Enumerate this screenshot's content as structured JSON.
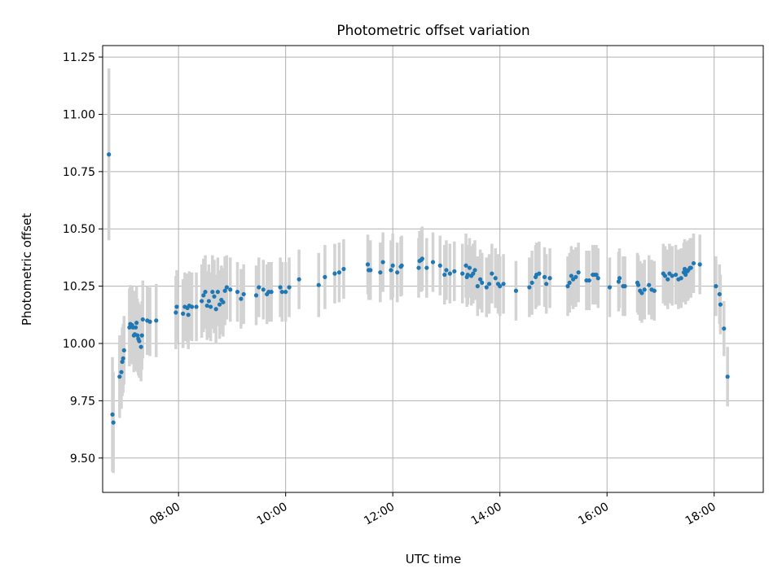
{
  "chart_data": {
    "type": "scatter",
    "title": "Photometric offset variation",
    "xlabel": "UTC time",
    "ylabel": "Photometric offset",
    "x_is_time": true,
    "xlim": [
      "06:35",
      "18:55"
    ],
    "ylim": [
      9.35,
      11.3
    ],
    "xticks": [
      "08:00",
      "10:00",
      "12:00",
      "14:00",
      "16:00",
      "18:00"
    ],
    "yticks": [
      "9.50",
      "9.75",
      "10.00",
      "10.25",
      "10.50",
      "10.75",
      "11.00",
      "11.25"
    ],
    "grid": true,
    "marker_color": "#1f77b4",
    "errorbar_color": "#d3d3d3",
    "series": [
      {
        "points": [
          [
            "06:42",
            10.825,
            0.375
          ],
          [
            "06:46",
            9.69,
            0.25
          ],
          [
            "06:47",
            9.655,
            0.22
          ],
          [
            "06:54",
            9.855,
            0.18
          ],
          [
            "06:56",
            9.875,
            0.16
          ],
          [
            "06:57",
            9.92,
            0.15
          ],
          [
            "06:58",
            9.935,
            0.15
          ],
          [
            "06:59",
            9.97,
            0.15
          ],
          [
            "07:05",
            10.07,
            0.17
          ],
          [
            "07:06",
            10.085,
            0.17
          ],
          [
            "07:08",
            10.08,
            0.17
          ],
          [
            "07:09",
            10.07,
            0.16
          ],
          [
            "07:10",
            10.035,
            0.16
          ],
          [
            "07:11",
            10.04,
            0.16
          ],
          [
            "07:12",
            10.07,
            0.16
          ],
          [
            "07:13",
            10.09,
            0.16
          ],
          [
            "07:14",
            10.035,
            0.16
          ],
          [
            "07:15",
            10.02,
            0.16
          ],
          [
            "07:16",
            10.01,
            0.16
          ],
          [
            "07:18",
            9.985,
            0.15
          ],
          [
            "07:19",
            10.035,
            0.15
          ],
          [
            "07:20",
            10.105,
            0.17
          ],
          [
            "07:25",
            10.1,
            0.15
          ],
          [
            "07:28",
            10.095,
            0.15
          ],
          [
            "07:35",
            10.1,
            0.16
          ],
          [
            "07:57",
            10.135,
            0.16
          ],
          [
            "07:58",
            10.16,
            0.16
          ],
          [
            "08:05",
            10.13,
            0.15
          ],
          [
            "08:07",
            10.16,
            0.15
          ],
          [
            "08:10",
            10.155,
            0.15
          ],
          [
            "08:11",
            10.125,
            0.15
          ],
          [
            "08:12",
            10.165,
            0.15
          ],
          [
            "08:15",
            10.16,
            0.15
          ],
          [
            "08:20",
            10.16,
            0.15
          ],
          [
            "08:26",
            10.185,
            0.16
          ],
          [
            "08:28",
            10.21,
            0.16
          ],
          [
            "08:30",
            10.225,
            0.16
          ],
          [
            "08:32",
            10.165,
            0.15
          ],
          [
            "08:34",
            10.185,
            0.16
          ],
          [
            "08:36",
            10.16,
            0.15
          ],
          [
            "08:38",
            10.225,
            0.16
          ],
          [
            "08:40",
            10.205,
            0.16
          ],
          [
            "08:42",
            10.15,
            0.15
          ],
          [
            "08:44",
            10.225,
            0.15
          ],
          [
            "08:46",
            10.17,
            0.15
          ],
          [
            "08:48",
            10.19,
            0.15
          ],
          [
            "08:50",
            10.18,
            0.15
          ],
          [
            "08:52",
            10.23,
            0.15
          ],
          [
            "08:54",
            10.245,
            0.14
          ],
          [
            "08:58",
            10.235,
            0.14
          ],
          [
            "09:06",
            10.225,
            0.13
          ],
          [
            "09:10",
            10.195,
            0.13
          ],
          [
            "09:13",
            10.215,
            0.13
          ],
          [
            "09:27",
            10.21,
            0.13
          ],
          [
            "09:30",
            10.245,
            0.13
          ],
          [
            "09:35",
            10.235,
            0.13
          ],
          [
            "09:39",
            10.215,
            0.13
          ],
          [
            "09:41",
            10.225,
            0.13
          ],
          [
            "09:44",
            10.225,
            0.13
          ],
          [
            "09:54",
            10.245,
            0.13
          ],
          [
            "09:56",
            10.225,
            0.13
          ],
          [
            "10:00",
            10.225,
            0.13
          ],
          [
            "10:04",
            10.245,
            0.13
          ],
          [
            "10:15",
            10.28,
            0.13
          ],
          [
            "10:37",
            10.255,
            0.14
          ],
          [
            "10:44",
            10.29,
            0.14
          ],
          [
            "10:55",
            10.305,
            0.13
          ],
          [
            "11:00",
            10.31,
            0.13
          ],
          [
            "11:05",
            10.325,
            0.13
          ],
          [
            "11:32",
            10.345,
            0.13
          ],
          [
            "11:33",
            10.32,
            0.13
          ],
          [
            "11:35",
            10.32,
            0.13
          ],
          [
            "11:46",
            10.31,
            0.13
          ],
          [
            "11:49",
            10.355,
            0.13
          ],
          [
            "11:58",
            10.32,
            0.13
          ],
          [
            "12:00",
            10.34,
            0.14
          ],
          [
            "12:05",
            10.31,
            0.13
          ],
          [
            "12:09",
            10.335,
            0.13
          ],
          [
            "12:10",
            10.34,
            0.13
          ],
          [
            "12:29",
            10.33,
            0.13
          ],
          [
            "12:30",
            10.36,
            0.13
          ],
          [
            "12:32",
            10.365,
            0.14
          ],
          [
            "12:33",
            10.37,
            0.14
          ],
          [
            "12:38",
            10.33,
            0.13
          ],
          [
            "12:45",
            10.355,
            0.13
          ],
          [
            "12:53",
            10.34,
            0.13
          ],
          [
            "12:58",
            10.3,
            0.13
          ],
          [
            "13:00",
            10.32,
            0.13
          ],
          [
            "13:04",
            10.305,
            0.13
          ],
          [
            "13:09",
            10.315,
            0.13
          ],
          [
            "13:18",
            10.305,
            0.13
          ],
          [
            "13:22",
            10.34,
            0.14
          ],
          [
            "13:23",
            10.29,
            0.13
          ],
          [
            "13:24",
            10.3,
            0.13
          ],
          [
            "13:26",
            10.33,
            0.13
          ],
          [
            "13:28",
            10.295,
            0.13
          ],
          [
            "13:30",
            10.305,
            0.13
          ],
          [
            "13:32",
            10.32,
            0.13
          ],
          [
            "13:35",
            10.25,
            0.13
          ],
          [
            "13:38",
            10.28,
            0.13
          ],
          [
            "13:40",
            10.265,
            0.13
          ],
          [
            "13:45",
            10.245,
            0.13
          ],
          [
            "13:48",
            10.26,
            0.13
          ],
          [
            "13:51",
            10.305,
            0.13
          ],
          [
            "13:55",
            10.285,
            0.13
          ],
          [
            "13:58",
            10.26,
            0.13
          ],
          [
            "14:00",
            10.25,
            0.13
          ],
          [
            "14:04",
            10.26,
            0.13
          ],
          [
            "14:18",
            10.23,
            0.13
          ],
          [
            "14:33",
            10.245,
            0.13
          ],
          [
            "14:36",
            10.265,
            0.14
          ],
          [
            "14:40",
            10.29,
            0.14
          ],
          [
            "14:41",
            10.3,
            0.14
          ],
          [
            "14:44",
            10.305,
            0.14
          ],
          [
            "14:50",
            10.29,
            0.13
          ],
          [
            "14:52",
            10.26,
            0.13
          ],
          [
            "14:56",
            10.285,
            0.13
          ],
          [
            "15:16",
            10.25,
            0.13
          ],
          [
            "15:18",
            10.265,
            0.13
          ],
          [
            "15:20",
            10.295,
            0.13
          ],
          [
            "15:22",
            10.28,
            0.13
          ],
          [
            "15:25",
            10.29,
            0.13
          ],
          [
            "15:28",
            10.31,
            0.13
          ],
          [
            "15:37",
            10.275,
            0.13
          ],
          [
            "15:40",
            10.275,
            0.13
          ],
          [
            "15:44",
            10.3,
            0.13
          ],
          [
            "15:46",
            10.3,
            0.13
          ],
          [
            "15:48",
            10.3,
            0.13
          ],
          [
            "15:50",
            10.285,
            0.13
          ],
          [
            "16:03",
            10.245,
            0.13
          ],
          [
            "16:13",
            10.27,
            0.13
          ],
          [
            "16:14",
            10.285,
            0.13
          ],
          [
            "16:18",
            10.25,
            0.13
          ],
          [
            "16:20",
            10.25,
            0.13
          ],
          [
            "16:34",
            10.265,
            0.13
          ],
          [
            "16:35",
            10.255,
            0.13
          ],
          [
            "16:37",
            10.23,
            0.13
          ],
          [
            "16:39",
            10.22,
            0.13
          ],
          [
            "16:42",
            10.235,
            0.13
          ],
          [
            "16:47",
            10.255,
            0.13
          ],
          [
            "16:50",
            10.235,
            0.13
          ],
          [
            "16:53",
            10.23,
            0.13
          ],
          [
            "17:03",
            10.305,
            0.13
          ],
          [
            "17:05",
            10.295,
            0.13
          ],
          [
            "17:08",
            10.28,
            0.13
          ],
          [
            "17:10",
            10.305,
            0.13
          ],
          [
            "17:13",
            10.295,
            0.13
          ],
          [
            "17:17",
            10.3,
            0.13
          ],
          [
            "17:20",
            10.28,
            0.13
          ],
          [
            "17:23",
            10.285,
            0.13
          ],
          [
            "17:26",
            10.31,
            0.13
          ],
          [
            "17:27",
            10.325,
            0.13
          ],
          [
            "17:28",
            10.3,
            0.13
          ],
          [
            "17:30",
            10.315,
            0.13
          ],
          [
            "17:31",
            10.32,
            0.13
          ],
          [
            "17:33",
            10.33,
            0.13
          ],
          [
            "17:34",
            10.33,
            0.13
          ],
          [
            "17:37",
            10.35,
            0.13
          ],
          [
            "17:44",
            10.345,
            0.13
          ],
          [
            "18:02",
            10.25,
            0.13
          ],
          [
            "18:06",
            10.215,
            0.13
          ],
          [
            "18:07",
            10.17,
            0.13
          ],
          [
            "18:11",
            10.065,
            0.12
          ],
          [
            "18:15",
            9.855,
            0.13
          ]
        ]
      }
    ]
  }
}
